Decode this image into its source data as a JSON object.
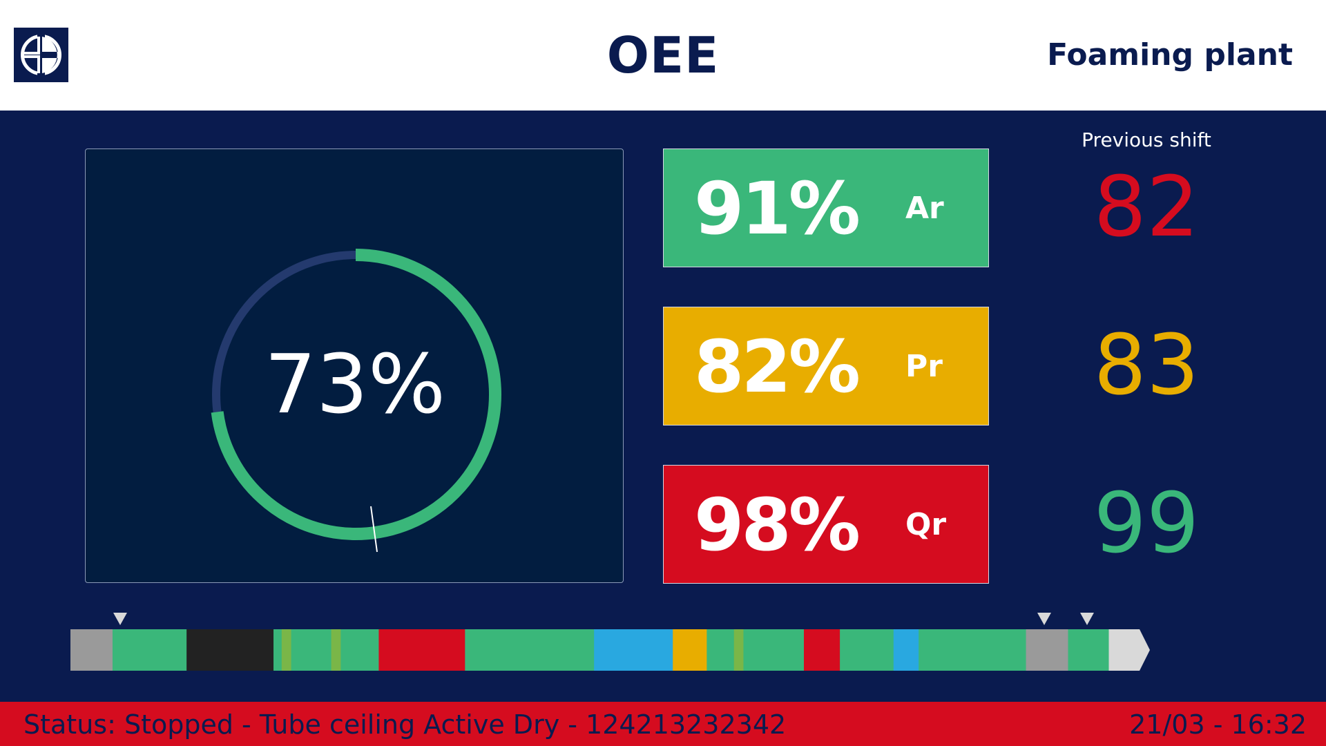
{
  "header": {
    "logo_icon": "electrolux-logo-icon",
    "title": "OEE",
    "plant": "Foaming plant"
  },
  "gauge": {
    "value_text": "73%",
    "value": 73,
    "track_color": "#243a6e",
    "fill_color": "#3ab77a"
  },
  "kpis": [
    {
      "value": "91%",
      "code": "Ar",
      "color": "#3ab77a"
    },
    {
      "value": "82%",
      "code": "Pr",
      "color": "#e8ad00"
    },
    {
      "value": "98%",
      "code": "Qr",
      "color": "#d50c1f"
    }
  ],
  "previous_shift": {
    "label": "Previous shift",
    "values": [
      {
        "value": "82",
        "color": "#d50c1f"
      },
      {
        "value": "83",
        "color": "#e8ad00"
      },
      {
        "value": "99",
        "color": "#3ab77a"
      }
    ]
  },
  "timeline": {
    "segments": [
      {
        "color": "#9a9a9a",
        "weight": 62
      },
      {
        "color": "#3ab77a",
        "weight": 109
      },
      {
        "color": "#222222",
        "weight": 128
      },
      {
        "color": "#3ab77a",
        "weight": 12
      },
      {
        "color": "#7ab648",
        "weight": 14
      },
      {
        "color": "#3ab77a",
        "weight": 59
      },
      {
        "color": "#7ab648",
        "weight": 14
      },
      {
        "color": "#3ab77a",
        "weight": 56
      },
      {
        "color": "#d50c1f",
        "weight": 127
      },
      {
        "color": "#3ab77a",
        "weight": 190
      },
      {
        "color": "#29a8e0",
        "weight": 116
      },
      {
        "color": "#e8ad00",
        "weight": 50
      },
      {
        "color": "#3ab77a",
        "weight": 40
      },
      {
        "color": "#7ab648",
        "weight": 14
      },
      {
        "color": "#3ab77a",
        "weight": 89
      },
      {
        "color": "#d50c1f",
        "weight": 53
      },
      {
        "color": "#3ab77a",
        "weight": 79
      },
      {
        "color": "#29a8e0",
        "weight": 37
      },
      {
        "color": "#3ab77a",
        "weight": 158
      },
      {
        "color": "#9a9a9a",
        "weight": 62
      },
      {
        "color": "#3ab77a",
        "weight": 60
      },
      {
        "color": "#d9d9d9",
        "weight": 30
      }
    ],
    "marker_color": "#d9d9d9"
  },
  "status": {
    "text": "Status: Stopped - Tube ceiling Active Dry - 124213232342",
    "datetime": "21/03 - 16:32",
    "color": "#d50c1f"
  }
}
